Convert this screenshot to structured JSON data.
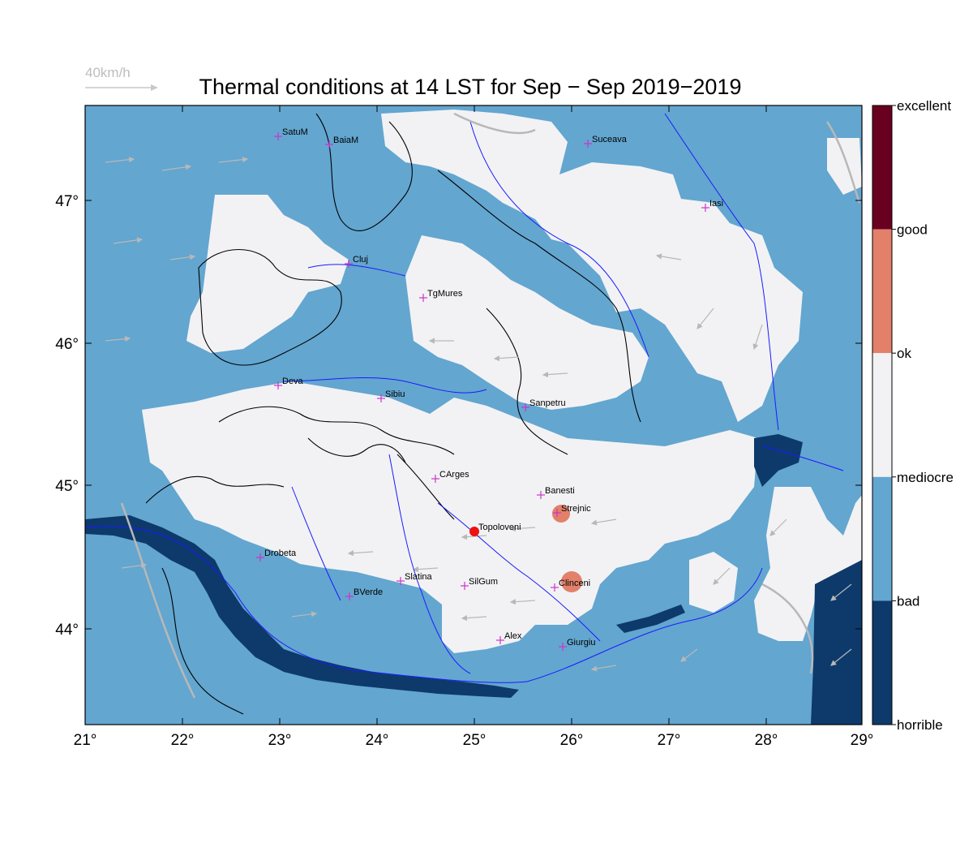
{
  "title": "Thermal conditions at 14 LST for Sep − Sep  2019−2019",
  "wind_scale": {
    "label": "40km/h"
  },
  "map": {
    "lon_range": [
      21,
      29
    ],
    "lat_range": [
      43.3,
      47.7
    ],
    "x_ticks": [
      "21°",
      "22°",
      "23°",
      "24°",
      "25°",
      "26°",
      "27°",
      "28°",
      "29°"
    ],
    "y_ticks": [
      "44°",
      "45°",
      "46°",
      "47°"
    ],
    "colors": {
      "horrible": "#0d3a6b",
      "bad": "#63a6d0",
      "mediocre_ok": "#f2f2f4",
      "ok_good": "#e2806a",
      "excellent": "#6a0020",
      "river": "#1a1aff",
      "border": "#b8b8b8",
      "city_marker": "#cc33cc",
      "focus_point": "#ee1111"
    }
  },
  "cities": [
    {
      "name": "SatuM"
    },
    {
      "name": "BaiaM"
    },
    {
      "name": "Suceava"
    },
    {
      "name": "Iasi"
    },
    {
      "name": "Cluj"
    },
    {
      "name": "TgMures"
    },
    {
      "name": "Deva"
    },
    {
      "name": "Sibiu"
    },
    {
      "name": "Sanpetru"
    },
    {
      "name": "CArges"
    },
    {
      "name": "Banesti"
    },
    {
      "name": "Strejnic"
    },
    {
      "name": "Topoloveni"
    },
    {
      "name": "Drobeta"
    },
    {
      "name": "Slatina"
    },
    {
      "name": "SilGum"
    },
    {
      "name": "Clinceni"
    },
    {
      "name": "BVerde"
    },
    {
      "name": "Alex"
    },
    {
      "name": "Giurgiu"
    }
  ],
  "colorbar": {
    "labels": [
      "excellent",
      "good",
      "ok",
      "mediocre",
      "bad",
      "horrible"
    ],
    "colors": [
      "#6a0020",
      "#e2806a",
      "#f2f2f4",
      "#63a6d0",
      "#0d3a6b"
    ]
  }
}
